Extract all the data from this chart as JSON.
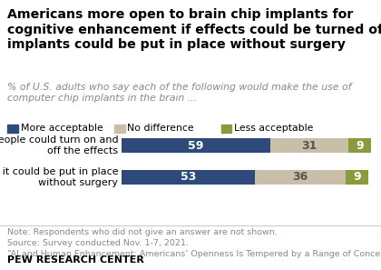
{
  "title": "Americans more open to brain chip implants for\ncognitive enhancement if effects could be turned off,\nimplants could be put in place without surgery",
  "subtitle": "% of U.S. adults who say each of the following would make the use of\ncomputer chip implants in the brain ...",
  "categories": [
    "If people could turn on and\noff the effects",
    "If it could be put in place\nwithout surgery"
  ],
  "segments": {
    "more_acceptable": [
      59,
      53
    ],
    "no_difference": [
      31,
      36
    ],
    "less_acceptable": [
      9,
      9
    ]
  },
  "colors": {
    "more_acceptable": "#2E4A7A",
    "no_difference": "#C9BFA8",
    "less_acceptable": "#8A9A3C"
  },
  "legend_labels": [
    "More acceptable",
    "No difference",
    "Less acceptable"
  ],
  "note_lines": [
    "Note: Respondents who did not give an answer are not shown.",
    "Source: Survey conducted Nov. 1-7, 2021.",
    "“AI and Human Enhancement: Americans’ Openness Is Tempered by a Range of Concerns”"
  ],
  "footer": "PEW RESEARCH CENTER",
  "background_color": "#FFFFFF",
  "bar_height": 0.45,
  "value_fontsize": 9,
  "title_fontsize": 10.2,
  "subtitle_fontsize": 7.8,
  "note_fontsize": 6.8,
  "legend_fontsize": 7.8,
  "category_fontsize": 8.0,
  "footer_fontsize": 8.0
}
